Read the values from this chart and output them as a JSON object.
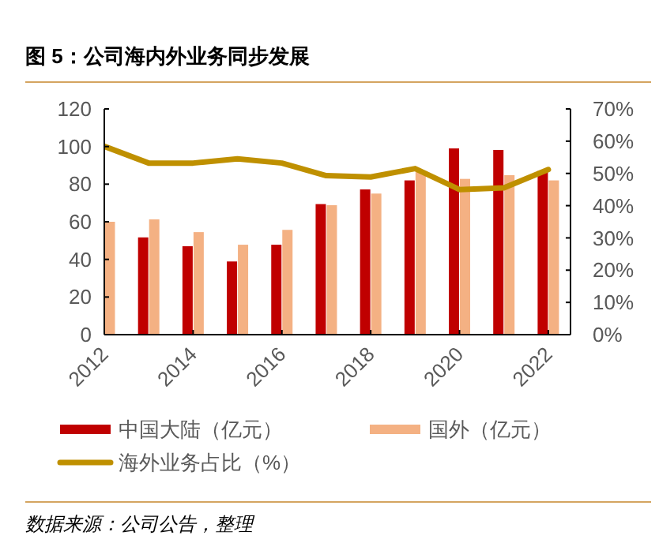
{
  "chart_data": {
    "type": "bar",
    "title": "图 5：公司海内外业务同步发展",
    "annotations": [
      "数据来源：公司公告，整理"
    ],
    "x": [
      2012,
      2013,
      2014,
      2015,
      2016,
      2017,
      2018,
      2019,
      2020,
      2021,
      2022
    ],
    "xlim": [
      2012,
      2022.5
    ],
    "xticks": [
      2012,
      2014,
      2016,
      2018,
      2020,
      2022
    ],
    "ylim": [
      0,
      120
    ],
    "yticks": [
      0,
      20,
      40,
      60,
      80,
      100,
      120
    ],
    "y2lim": [
      0,
      70
    ],
    "y2ticks": [
      {
        "value": 0,
        "label": "0%"
      },
      {
        "value": 10,
        "label": "10%"
      },
      {
        "value": 20,
        "label": "20%"
      },
      {
        "value": 30,
        "label": "30%"
      },
      {
        "value": 40,
        "label": "40%"
      },
      {
        "value": 50,
        "label": "50%"
      },
      {
        "value": 60,
        "label": "60%"
      },
      {
        "value": 70,
        "label": "70%"
      }
    ],
    "legend": "bottom",
    "series": [
      {
        "name": "中国大陆（亿元）",
        "color": "#c00000",
        "values": [
          null,
          51.7,
          47,
          38.9,
          47.8,
          69.4,
          77.2,
          82,
          99,
          98.2,
          87
        ]
      },
      {
        "name": "国外（亿元）",
        "color": "#f4b183",
        "values": [
          60,
          61.3,
          54.5,
          47.8,
          55.7,
          68.8,
          75,
          86.4,
          82.8,
          84.8,
          82
        ]
      },
      {
        "name": "海外业务占比（%）",
        "type": "line",
        "axis": "y2",
        "color": "#bf9000",
        "values": [
          58.4,
          53.2,
          53.2,
          54.5,
          53.2,
          49.3,
          48.9,
          51.5,
          45,
          45.5,
          51.2
        ]
      }
    ]
  }
}
